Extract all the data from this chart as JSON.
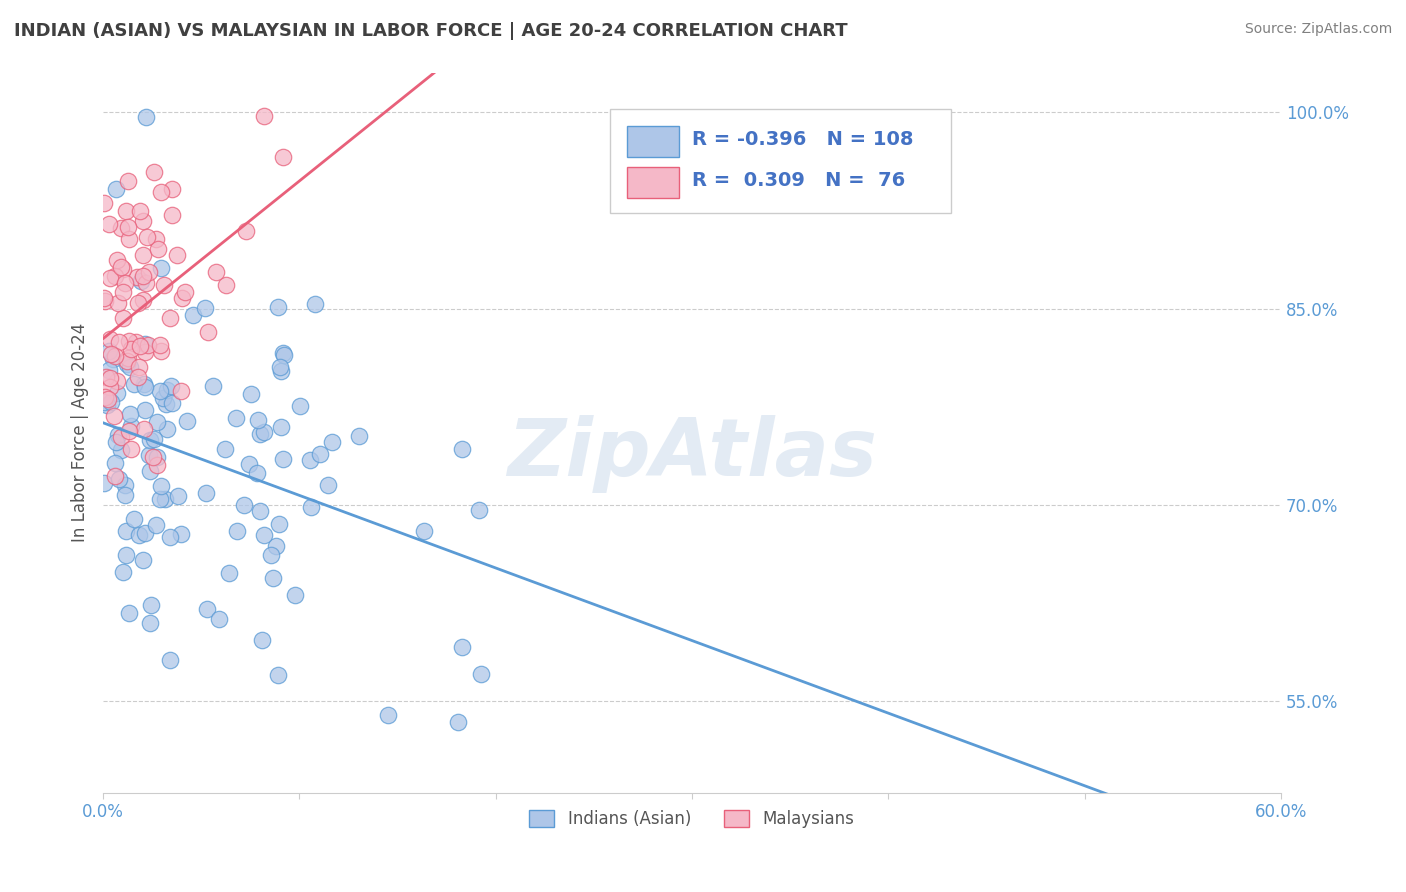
{
  "title": "INDIAN (ASIAN) VS MALAYSIAN IN LABOR FORCE | AGE 20-24 CORRELATION CHART",
  "source": "Source: ZipAtlas.com",
  "ylabel": "In Labor Force | Age 20-24",
  "xlim": [
    0.0,
    0.6
  ],
  "ylim": [
    0.48,
    1.03
  ],
  "xticks": [
    0.0,
    0.1,
    0.2,
    0.3,
    0.4,
    0.5,
    0.6
  ],
  "xticklabels": [
    "0.0%",
    "",
    "",
    "",
    "",
    "",
    "60.0%"
  ],
  "yticks": [
    0.55,
    0.7,
    0.85,
    1.0
  ],
  "yticklabels": [
    "55.0%",
    "70.0%",
    "85.0%",
    "100.0%"
  ],
  "blue_color": "#aec6e8",
  "pink_color": "#f5b8c8",
  "blue_line_color": "#5b9bd5",
  "pink_line_color": "#e8607a",
  "legend_R_blue": "-0.396",
  "legend_N_blue": "108",
  "legend_R_pink": "0.309",
  "legend_N_pink": "76",
  "watermark": "ZipAtlas",
  "blue_R": -0.396,
  "blue_N": 108,
  "pink_R": 0.309,
  "pink_N": 76,
  "legend_text_color": "#4472c4",
  "tick_label_color": "#5b9bd5",
  "title_color": "#404040",
  "source_color": "#808080"
}
